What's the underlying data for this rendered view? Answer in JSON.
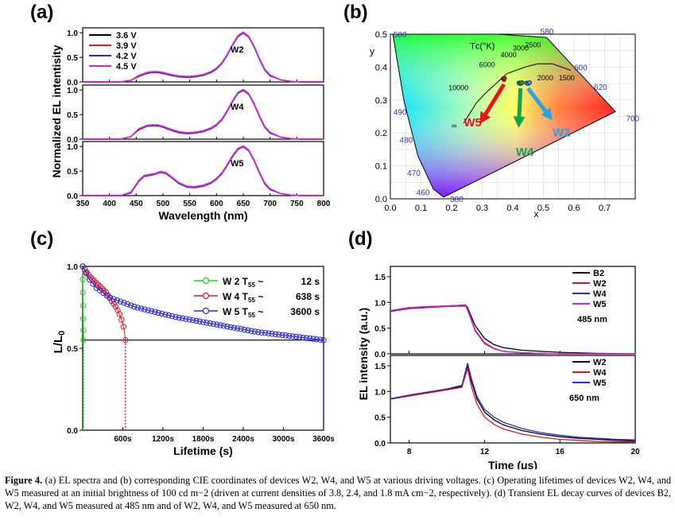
{
  "panel_labels": {
    "a": "(a)",
    "b": "(b)",
    "c": "(c)",
    "d": "(d)"
  },
  "caption": {
    "lead": "Figure 4.",
    "text": "(a) EL spectra and (b) corresponding CIE coordinates of devices W2, W4, and W5 at various driving voltages. (c) Operating lifetimes of devices W2, W4, and W5 measured at an initial brightness of 100 cd m−2 (driven at current densities of 3.8, 2.4, and 1.8 mA cm−2, respectively). (d) Transient EL decay curves of devices B2, W2, W4, and W5 measured at 485 nm and of W2, W4, and W5 measured at 650 nm."
  },
  "chart_data": [
    {
      "id": "a",
      "type": "line",
      "xlabel": "Wavelength (nm)",
      "ylabel": "Normalized EL intentisity",
      "xlim": [
        350,
        800
      ],
      "xticks": [
        350,
        400,
        450,
        500,
        550,
        600,
        650,
        700,
        750,
        800
      ],
      "ylim": [
        0,
        1.1
      ],
      "yticks": [
        "0.0",
        "0.5",
        "1.0"
      ],
      "legend": [
        {
          "name": "3.6 V",
          "color": "#000000"
        },
        {
          "name": "3.9 V",
          "color": "#e8141b"
        },
        {
          "name": "4.2 V",
          "color": "#2b2bd6"
        },
        {
          "name": "4.5 V",
          "color": "#e020e0"
        }
      ],
      "subplots": [
        {
          "label": "W2",
          "x": [
            350,
            420,
            440,
            455,
            470,
            480,
            490,
            500,
            515,
            530,
            545,
            560,
            575,
            590,
            600,
            610,
            620,
            630,
            640,
            650,
            660,
            670,
            680,
            690,
            700,
            720,
            740,
            760,
            800
          ],
          "y": [
            0,
            0,
            0.03,
            0.12,
            0.18,
            0.2,
            0.2,
            0.18,
            0.14,
            0.11,
            0.1,
            0.11,
            0.14,
            0.2,
            0.27,
            0.38,
            0.55,
            0.75,
            0.93,
            1.0,
            0.92,
            0.72,
            0.47,
            0.25,
            0.13,
            0.04,
            0.01,
            0,
            0
          ]
        },
        {
          "label": "W4",
          "x": [
            350,
            420,
            440,
            455,
            470,
            480,
            490,
            500,
            515,
            530,
            545,
            560,
            575,
            590,
            600,
            610,
            620,
            630,
            640,
            650,
            660,
            670,
            680,
            690,
            700,
            720,
            740,
            760,
            800
          ],
          "y": [
            0,
            0,
            0.05,
            0.2,
            0.27,
            0.28,
            0.28,
            0.25,
            0.19,
            0.14,
            0.12,
            0.13,
            0.16,
            0.22,
            0.29,
            0.4,
            0.57,
            0.77,
            0.94,
            1.0,
            0.92,
            0.72,
            0.47,
            0.25,
            0.13,
            0.04,
            0.01,
            0,
            0
          ]
        },
        {
          "label": "W5",
          "x": [
            350,
            420,
            440,
            455,
            465,
            475,
            485,
            495,
            505,
            515,
            530,
            545,
            560,
            575,
            590,
            600,
            610,
            620,
            630,
            640,
            650,
            660,
            670,
            680,
            690,
            700,
            720,
            740,
            760,
            800
          ],
          "y": [
            0,
            0,
            0.06,
            0.3,
            0.4,
            0.42,
            0.44,
            0.48,
            0.46,
            0.38,
            0.25,
            0.18,
            0.17,
            0.2,
            0.26,
            0.34,
            0.45,
            0.62,
            0.8,
            0.95,
            1.0,
            0.92,
            0.72,
            0.47,
            0.25,
            0.13,
            0.04,
            0.01,
            0,
            0
          ]
        }
      ]
    },
    {
      "id": "b",
      "type": "scatter",
      "xlabel": "x",
      "ylabel": "y",
      "xlim": [
        0.0,
        0.8
      ],
      "ylim": [
        0.0,
        0.5
      ],
      "xticks": [
        "0.0",
        "0.1",
        "0.2",
        "0.3",
        "0.4",
        "0.5",
        "0.6",
        "0.7"
      ],
      "yticks": [
        "0.0",
        "0.1",
        "0.2",
        "0.3",
        "0.4",
        "0.5"
      ],
      "locus_labels": [
        "500",
        "580",
        "600",
        "620",
        "700",
        "490",
        "480",
        "470",
        "460",
        "380"
      ],
      "planck_title": "Tᴄ(°K)",
      "planck_labels": [
        "10000",
        "6000",
        "4000",
        "3000",
        "2500",
        "2000",
        "1500",
        "∞"
      ],
      "series": [
        {
          "name": "W5",
          "color": "#e8141b",
          "points": [
            [
              0.369,
              0.365
            ],
            [
              0.371,
              0.362
            ],
            [
              0.373,
              0.366
            ]
          ]
        },
        {
          "name": "W4",
          "color": "#12a34a",
          "points": [
            [
              0.42,
              0.352
            ],
            [
              0.425,
              0.35
            ],
            [
              0.43,
              0.353
            ]
          ]
        },
        {
          "name": "W2",
          "color": "#2aa3e0",
          "points": [
            [
              0.445,
              0.352
            ],
            [
              0.45,
              0.35
            ],
            [
              0.455,
              0.353
            ]
          ]
        }
      ]
    },
    {
      "id": "c",
      "type": "line",
      "xlabel": "Lifetime (s)",
      "ylabel": "L/L0",
      "xlim": [
        0,
        3600
      ],
      "xticks": [
        "600s",
        "1200s",
        "1800s",
        "2400s",
        "3000s",
        "3600s"
      ],
      "ylim": [
        0,
        1.0
      ],
      "yticks": [
        "0.0",
        "0.5",
        "1.0"
      ],
      "threshold": 0.55,
      "legend": [
        {
          "name": "W 2",
          "tlabel": "T",
          "tsub": "55",
          "sep": "~",
          "value": "12 s",
          "color": "#1fd11f"
        },
        {
          "name": "W 4",
          "tlabel": "T",
          "tsub": "55",
          "sep": "~",
          "value": "638 s",
          "color": "#e8141b"
        },
        {
          "name": "W 5",
          "tlabel": "T",
          "tsub": "55",
          "sep": "~",
          "value": "3600 s",
          "color": "#2b2bd6"
        }
      ],
      "series": [
        {
          "name": "W2",
          "x": [
            0,
            3,
            6,
            9,
            12
          ],
          "y": [
            1.0,
            0.88,
            0.76,
            0.64,
            0.55
          ]
        },
        {
          "name": "W4",
          "x": [
            0,
            50,
            100,
            150,
            200,
            250,
            300,
            350,
            400,
            450,
            500,
            550,
            600,
            620,
            638
          ],
          "y": [
            1.0,
            0.97,
            0.94,
            0.92,
            0.9,
            0.88,
            0.86,
            0.84,
            0.81,
            0.78,
            0.75,
            0.71,
            0.65,
            0.61,
            0.55
          ]
        },
        {
          "name": "W5",
          "x": [
            0,
            100,
            200,
            300,
            400,
            600,
            800,
            1000,
            1400,
            1800,
            2200,
            2600,
            3000,
            3400,
            3600
          ],
          "y": [
            1.0,
            0.92,
            0.87,
            0.84,
            0.81,
            0.78,
            0.75,
            0.73,
            0.69,
            0.66,
            0.63,
            0.6,
            0.58,
            0.56,
            0.55
          ]
        }
      ]
    },
    {
      "id": "d",
      "type": "line",
      "xlabel": "Time (μs)",
      "ylabel": "EL intensity (a.u.)",
      "xlim": [
        7,
        20
      ],
      "xticks": [
        "8",
        "12",
        "16",
        "20"
      ],
      "ylim": [
        0,
        1.7
      ],
      "yticks": [
        "0.0",
        "0.5",
        "1.0",
        "1.5"
      ],
      "subplots": [
        {
          "wavelength": "485 nm",
          "legend": [
            {
              "name": "B2",
              "color": "#000000"
            },
            {
              "name": "W2",
              "color": "#e8141b"
            },
            {
              "name": "W4",
              "color": "#2b2bd6"
            },
            {
              "name": "W5",
              "color": "#e020e0"
            }
          ],
          "x": [
            7,
            8,
            9,
            10,
            11,
            11.1,
            11.5,
            12,
            12.5,
            13,
            14,
            16,
            18,
            20
          ],
          "series": [
            {
              "name": "B2",
              "y": [
                0.84,
                0.9,
                0.92,
                0.93,
                0.95,
                0.9,
                0.55,
                0.3,
                0.18,
                0.12,
                0.07,
                0.03,
                0.01,
                0.0
              ]
            },
            {
              "name": "W2",
              "y": [
                0.82,
                0.88,
                0.9,
                0.92,
                0.93,
                0.85,
                0.45,
                0.2,
                0.1,
                0.05,
                0.02,
                0.0,
                0.0,
                0.0
              ]
            },
            {
              "name": "W4",
              "y": [
                0.83,
                0.89,
                0.91,
                0.93,
                0.94,
                0.86,
                0.46,
                0.21,
                0.1,
                0.05,
                0.02,
                0.0,
                0.0,
                0.0
              ]
            },
            {
              "name": "W5",
              "y": [
                0.84,
                0.9,
                0.92,
                0.93,
                0.95,
                0.87,
                0.47,
                0.22,
                0.11,
                0.05,
                0.02,
                0.0,
                0.0,
                0.0
              ]
            }
          ]
        },
        {
          "wavelength": "650 nm",
          "legend": [
            {
              "name": "W2",
              "color": "#000000"
            },
            {
              "name": "W4",
              "color": "#e8141b"
            },
            {
              "name": "W5",
              "color": "#2b2bd6"
            }
          ],
          "x": [
            7,
            8,
            9,
            10,
            10.8,
            11.1,
            11.3,
            11.6,
            12,
            12.5,
            13,
            14,
            15,
            16,
            17,
            18,
            19,
            20
          ],
          "series": [
            {
              "name": "W2",
              "y": [
                0.86,
                0.92,
                0.98,
                1.04,
                1.1,
                1.5,
                1.2,
                0.85,
                0.6,
                0.45,
                0.35,
                0.24,
                0.17,
                0.12,
                0.09,
                0.07,
                0.05,
                0.04
              ]
            },
            {
              "name": "W4",
              "y": [
                0.85,
                0.91,
                0.97,
                1.03,
                1.08,
                1.45,
                1.1,
                0.75,
                0.5,
                0.36,
                0.27,
                0.17,
                0.11,
                0.07,
                0.05,
                0.03,
                0.02,
                0.02
              ]
            },
            {
              "name": "W5",
              "y": [
                0.86,
                0.93,
                0.99,
                1.05,
                1.12,
                1.55,
                1.25,
                0.9,
                0.65,
                0.5,
                0.4,
                0.28,
                0.2,
                0.15,
                0.11,
                0.09,
                0.07,
                0.06
              ]
            }
          ]
        }
      ]
    }
  ]
}
